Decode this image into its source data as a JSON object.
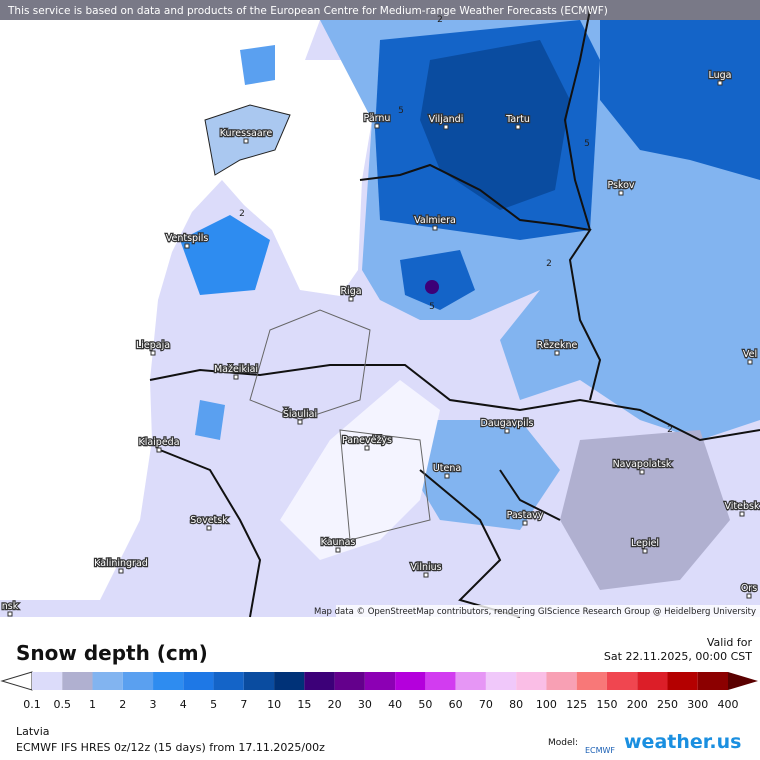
{
  "banner": "This service is based on data and products of the European Centre for Medium-range Weather Forecasts (ECMWF)",
  "map": {
    "cities": [
      "Pärnu",
      "Viljandi",
      "Tartu",
      "Luga",
      "Kuressaare",
      "Pskov",
      "Valmiera",
      "Ventspils",
      "Riga",
      "Liepaja",
      "Rēzekne",
      "Mažeikiai",
      "Šiauliai",
      "Klaipėda",
      "Panevėžys",
      "Daugavpils",
      "Utena",
      "Navapolatsk",
      "Sovetsk",
      "Pastavy",
      "Kaunas",
      "Lepiel",
      "Kaliningrad",
      "Vilnius",
      "Vitebsk",
      "Vel",
      "Ors",
      "nsk"
    ],
    "contour_labels": [
      "2",
      "2",
      "2",
      "2",
      "5",
      "5",
      "5"
    ],
    "attribution": "Map data © OpenStreetMap contributors, rendering GIScience Research Group @ Heidelberg University"
  },
  "legend": {
    "title": "Snow depth (cm)",
    "ticks": [
      0.1,
      0.5,
      1,
      2,
      3,
      4,
      5,
      7,
      10,
      15,
      20,
      30,
      40,
      50,
      60,
      70,
      80,
      100,
      125,
      150,
      200,
      250,
      300,
      400
    ],
    "colors": [
      "#dcdcfa",
      "#b0b0d0",
      "#82b4f0",
      "#5aa0f0",
      "#2e8cf0",
      "#1e78e6",
      "#1464c8",
      "#0a4ca0",
      "#003278",
      "#3c0078",
      "#64008c",
      "#8c00b4",
      "#b400dc",
      "#d23cf0",
      "#e696f5",
      "#f0c8fa",
      "#fabee6",
      "#f8a0b4",
      "#f87878",
      "#f04650",
      "#dc1e28",
      "#b40000",
      "#8c0000"
    ],
    "under_color": "#ffffff",
    "over_color": "#5a0000"
  },
  "valid": {
    "label": "Valid for",
    "time": "Sat 22.11.2025, 00:00 CST"
  },
  "footer": {
    "region": "Latvia",
    "run": "ECMWF IFS HRES 0z/12z (15 days) from 17.11.2025/00z",
    "model_label": "Model:",
    "model": "ECMWF",
    "brand": "weather.us"
  }
}
